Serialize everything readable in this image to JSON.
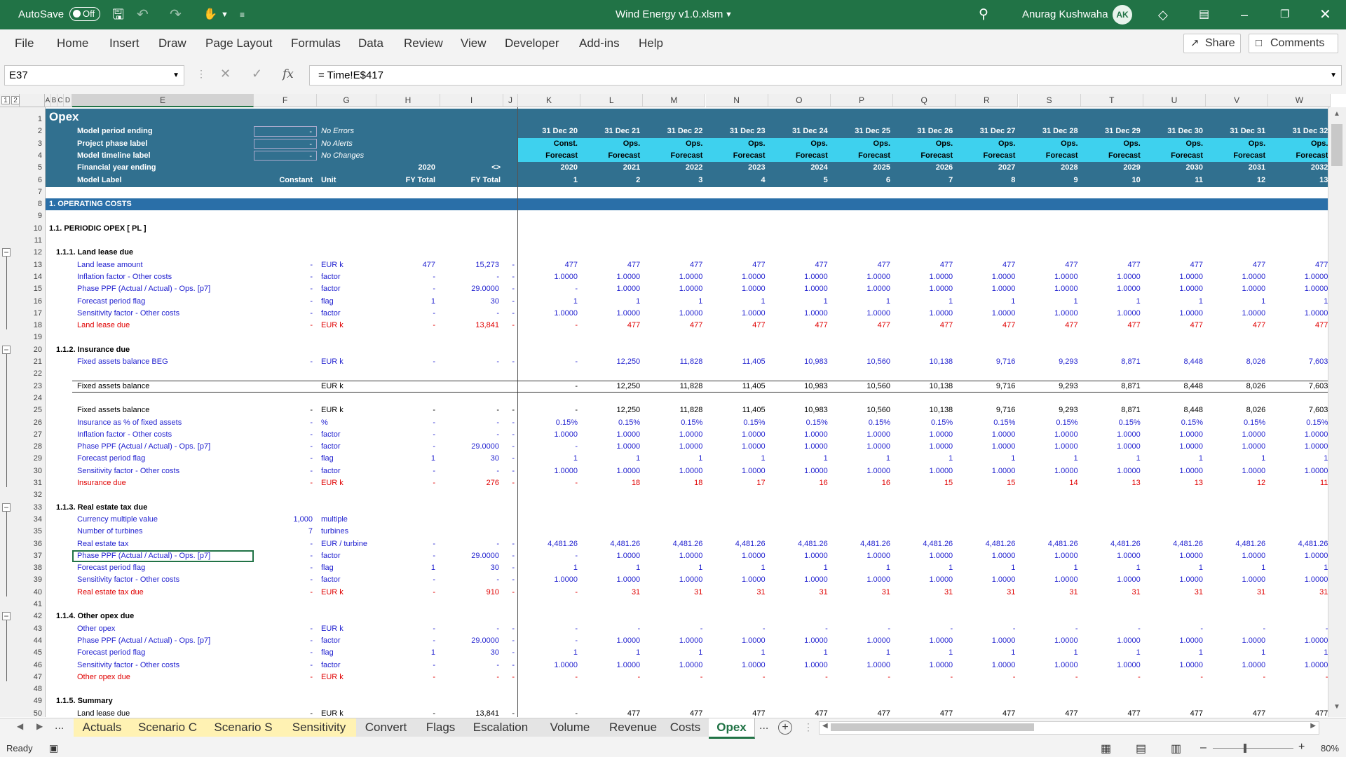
{
  "app": {
    "autosave_label": "AutoSave",
    "autosave_state": "Off",
    "title": "Wind Energy v1.0.xlsm",
    "user": "Anurag Kushwaha",
    "initials": "AK"
  },
  "ribbon": {
    "tabs": [
      "File",
      "Home",
      "Insert",
      "Draw",
      "Page Layout",
      "Formulas",
      "Data",
      "Review",
      "View",
      "Developer",
      "Add-ins",
      "Help"
    ],
    "share": "Share",
    "comments": "Comments"
  },
  "formula": {
    "namebox": "E37",
    "content": "= Time!E$417"
  },
  "colors": {
    "excel_green": "#217346",
    "band_blue": "#31708f",
    "cyan": "#3ed1ee",
    "section_blue": "#2a6fa8",
    "input_blue": "#1f1fcf",
    "calc_red": "#e00000"
  },
  "columns": {
    "outline_levels": [
      "1",
      "2"
    ],
    "headers": [
      "A",
      "B",
      "C",
      "D",
      "E",
      "F",
      "G",
      "H",
      "I",
      "J",
      "K",
      "L",
      "M",
      "N",
      "O",
      "P",
      "Q",
      "R",
      "S",
      "T",
      "U",
      "V",
      "W"
    ],
    "years": [
      {
        "date": "31 Dec 20",
        "phase": "Const.",
        "type": "Forecast",
        "year": "2020",
        "idx": "1"
      },
      {
        "date": "31 Dec 21",
        "phase": "Ops.",
        "type": "Forecast",
        "year": "2021",
        "idx": "2"
      },
      {
        "date": "31 Dec 22",
        "phase": "Ops.",
        "type": "Forecast",
        "year": "2022",
        "idx": "3"
      },
      {
        "date": "31 Dec 23",
        "phase": "Ops.",
        "type": "Forecast",
        "year": "2023",
        "idx": "4"
      },
      {
        "date": "31 Dec 24",
        "phase": "Ops.",
        "type": "Forecast",
        "year": "2024",
        "idx": "5"
      },
      {
        "date": "31 Dec 25",
        "phase": "Ops.",
        "type": "Forecast",
        "year": "2025",
        "idx": "6"
      },
      {
        "date": "31 Dec 26",
        "phase": "Ops.",
        "type": "Forecast",
        "year": "2026",
        "idx": "7"
      },
      {
        "date": "31 Dec 27",
        "phase": "Ops.",
        "type": "Forecast",
        "year": "2027",
        "idx": "8"
      },
      {
        "date": "31 Dec 28",
        "phase": "Ops.",
        "type": "Forecast",
        "year": "2028",
        "idx": "9"
      },
      {
        "date": "31 Dec 29",
        "phase": "Ops.",
        "type": "Forecast",
        "year": "2029",
        "idx": "10"
      },
      {
        "date": "31 Dec 30",
        "phase": "Ops.",
        "type": "Forecast",
        "year": "2030",
        "idx": "11"
      },
      {
        "date": "31 Dec 31",
        "phase": "Ops.",
        "type": "Forecast",
        "year": "2031",
        "idx": "12"
      },
      {
        "date": "31 Dec 32",
        "phase": "Ops.",
        "type": "Forecast",
        "year": "2032",
        "idx": "13"
      }
    ]
  },
  "header": {
    "title": "Opex",
    "rows": [
      {
        "label": "Model period ending",
        "input": "-",
        "status": "No Errors"
      },
      {
        "label": "Project phase label",
        "input": "-",
        "status": "No Alerts"
      },
      {
        "label": "Model timeline label",
        "input": "-",
        "status": "No Changes"
      }
    ],
    "fy_label": "Financial year ending",
    "fy_h": "2020",
    "fy_i": "<>",
    "model_label": "Model Label",
    "constant": "Constant",
    "unit": "Unit",
    "fy_total_h": "FY Total",
    "fy_total_i": "FY Total"
  },
  "rows": [
    {
      "n": "7",
      "kind": "blank"
    },
    {
      "n": "8",
      "kind": "section",
      "label": "1. OPERATING COSTS"
    },
    {
      "n": "9",
      "kind": "blank"
    },
    {
      "n": "10",
      "kind": "sub",
      "label": "1.1. PERIODIC OPEX [ PL ]"
    },
    {
      "n": "11",
      "kind": "blank"
    },
    {
      "n": "12",
      "kind": "group",
      "label": "1.1.1. Land lease due"
    },
    {
      "n": "13",
      "kind": "data",
      "c": "blue",
      "label": "Land lease amount",
      "f": "-",
      "g": "EUR k",
      "h": "477",
      "i": "15,273",
      "j": "-",
      "vals": [
        "477",
        "477",
        "477",
        "477",
        "477",
        "477",
        "477",
        "477",
        "477",
        "477",
        "477",
        "477",
        "477"
      ]
    },
    {
      "n": "14",
      "kind": "data",
      "c": "blue",
      "label": "Inflation factor - Other costs",
      "f": "-",
      "g": "factor",
      "h": "-",
      "i": "-",
      "j": "-",
      "vals": [
        "1.0000",
        "1.0000",
        "1.0000",
        "1.0000",
        "1.0000",
        "1.0000",
        "1.0000",
        "1.0000",
        "1.0000",
        "1.0000",
        "1.0000",
        "1.0000",
        "1.0000"
      ]
    },
    {
      "n": "15",
      "kind": "data",
      "c": "blue",
      "label": "Phase PPF (Actual / Actual) - Ops. [p7]",
      "f": "-",
      "g": "factor",
      "h": "-",
      "i": "29.0000",
      "j": "-",
      "vals": [
        "-",
        "1.0000",
        "1.0000",
        "1.0000",
        "1.0000",
        "1.0000",
        "1.0000",
        "1.0000",
        "1.0000",
        "1.0000",
        "1.0000",
        "1.0000",
        "1.0000"
      ]
    },
    {
      "n": "16",
      "kind": "data",
      "c": "blue",
      "label": "Forecast period flag",
      "f": "-",
      "g": "flag",
      "h": "1",
      "i": "30",
      "j": "-",
      "vals": [
        "1",
        "1",
        "1",
        "1",
        "1",
        "1",
        "1",
        "1",
        "1",
        "1",
        "1",
        "1",
        "1"
      ]
    },
    {
      "n": "17",
      "kind": "data",
      "c": "blue",
      "label": "Sensitivity factor - Other costs",
      "f": "-",
      "g": "factor",
      "h": "-",
      "i": "-",
      "j": "-",
      "vals": [
        "1.0000",
        "1.0000",
        "1.0000",
        "1.0000",
        "1.0000",
        "1.0000",
        "1.0000",
        "1.0000",
        "1.0000",
        "1.0000",
        "1.0000",
        "1.0000",
        "1.0000"
      ]
    },
    {
      "n": "18",
      "kind": "data",
      "c": "red",
      "label": "Land lease due",
      "f": "-",
      "g": "EUR k",
      "h": "-",
      "i": "13,841",
      "j": "-",
      "vals": [
        "-",
        "477",
        "477",
        "477",
        "477",
        "477",
        "477",
        "477",
        "477",
        "477",
        "477",
        "477",
        "477"
      ]
    },
    {
      "n": "19",
      "kind": "blank"
    },
    {
      "n": "20",
      "kind": "group",
      "label": "1.1.2. Insurance due"
    },
    {
      "n": "21",
      "kind": "data",
      "c": "blue",
      "label": "Fixed assets balance BEG",
      "f": "-",
      "g": "EUR k",
      "h": "-",
      "i": "-",
      "j": "-",
      "vals": [
        "-",
        "12,250",
        "11,828",
        "11,405",
        "10,983",
        "10,560",
        "10,138",
        "9,716",
        "9,293",
        "8,871",
        "8,448",
        "8,026",
        "7,603"
      ]
    },
    {
      "n": "22",
      "kind": "blank"
    },
    {
      "n": "23",
      "kind": "data",
      "c": "black",
      "label": "Fixed assets balance",
      "f": "",
      "g": "EUR k",
      "h": "",
      "i": "",
      "j": "",
      "vals": [
        "-",
        "12,250",
        "11,828",
        "11,405",
        "10,983",
        "10,560",
        "10,138",
        "9,716",
        "9,293",
        "8,871",
        "8,448",
        "8,026",
        "7,603"
      ],
      "boxed": true
    },
    {
      "n": "24",
      "kind": "blank"
    },
    {
      "n": "25",
      "kind": "data",
      "c": "black",
      "label": "Fixed assets balance",
      "f": "-",
      "g": "EUR k",
      "h": "-",
      "i": "-",
      "j": "-",
      "vals": [
        "-",
        "12,250",
        "11,828",
        "11,405",
        "10,983",
        "10,560",
        "10,138",
        "9,716",
        "9,293",
        "8,871",
        "8,448",
        "8,026",
        "7,603"
      ]
    },
    {
      "n": "26",
      "kind": "data",
      "c": "blue",
      "label": "Insurance as % of fixed assets",
      "f": "-",
      "g": "%",
      "h": "-",
      "i": "-",
      "j": "-",
      "vals": [
        "0.15%",
        "0.15%",
        "0.15%",
        "0.15%",
        "0.15%",
        "0.15%",
        "0.15%",
        "0.15%",
        "0.15%",
        "0.15%",
        "0.15%",
        "0.15%",
        "0.15%"
      ]
    },
    {
      "n": "27",
      "kind": "data",
      "c": "blue",
      "label": "Inflation factor - Other costs",
      "f": "-",
      "g": "factor",
      "h": "-",
      "i": "-",
      "j": "-",
      "vals": [
        "1.0000",
        "1.0000",
        "1.0000",
        "1.0000",
        "1.0000",
        "1.0000",
        "1.0000",
        "1.0000",
        "1.0000",
        "1.0000",
        "1.0000",
        "1.0000",
        "1.0000"
      ]
    },
    {
      "n": "28",
      "kind": "data",
      "c": "blue",
      "label": "Phase PPF (Actual / Actual) - Ops. [p7]",
      "f": "-",
      "g": "factor",
      "h": "-",
      "i": "29.0000",
      "j": "-",
      "vals": [
        "-",
        "1.0000",
        "1.0000",
        "1.0000",
        "1.0000",
        "1.0000",
        "1.0000",
        "1.0000",
        "1.0000",
        "1.0000",
        "1.0000",
        "1.0000",
        "1.0000"
      ]
    },
    {
      "n": "29",
      "kind": "data",
      "c": "blue",
      "label": "Forecast period flag",
      "f": "-",
      "g": "flag",
      "h": "1",
      "i": "30",
      "j": "-",
      "vals": [
        "1",
        "1",
        "1",
        "1",
        "1",
        "1",
        "1",
        "1",
        "1",
        "1",
        "1",
        "1",
        "1"
      ]
    },
    {
      "n": "30",
      "kind": "data",
      "c": "blue",
      "label": "Sensitivity factor - Other costs",
      "f": "-",
      "g": "factor",
      "h": "-",
      "i": "-",
      "j": "-",
      "vals": [
        "1.0000",
        "1.0000",
        "1.0000",
        "1.0000",
        "1.0000",
        "1.0000",
        "1.0000",
        "1.0000",
        "1.0000",
        "1.0000",
        "1.0000",
        "1.0000",
        "1.0000"
      ]
    },
    {
      "n": "31",
      "kind": "data",
      "c": "red",
      "label": "Insurance due",
      "f": "-",
      "g": "EUR k",
      "h": "-",
      "i": "276",
      "j": "-",
      "vals": [
        "-",
        "18",
        "18",
        "17",
        "16",
        "16",
        "15",
        "15",
        "14",
        "13",
        "13",
        "12",
        "11"
      ]
    },
    {
      "n": "32",
      "kind": "blank"
    },
    {
      "n": "33",
      "kind": "group",
      "label": "1.1.3. Real estate tax due"
    },
    {
      "n": "34",
      "kind": "data",
      "c": "blue",
      "label": "Currency multiple value",
      "f": "1,000",
      "g": "multiple",
      "h": "",
      "i": "",
      "j": "",
      "vals": [
        "",
        "",
        "",
        "",
        "",
        "",
        "",
        "",
        "",
        "",
        "",
        "",
        ""
      ]
    },
    {
      "n": "35",
      "kind": "data",
      "c": "blue",
      "label": "Number of turbines",
      "f": "7",
      "g": "turbines",
      "h": "",
      "i": "",
      "j": "",
      "vals": [
        "",
        "",
        "",
        "",
        "",
        "",
        "",
        "",
        "",
        "",
        "",
        "",
        ""
      ]
    },
    {
      "n": "36",
      "kind": "data",
      "c": "blue",
      "label": "Real estate tax",
      "f": "-",
      "g": "EUR / turbine",
      "h": "-",
      "i": "-",
      "j": "-",
      "vals": [
        "4,481.26",
        "4,481.26",
        "4,481.26",
        "4,481.26",
        "4,481.26",
        "4,481.26",
        "4,481.26",
        "4,481.26",
        "4,481.26",
        "4,481.26",
        "4,481.26",
        "4,481.26",
        "4,481.26"
      ]
    },
    {
      "n": "37",
      "kind": "data",
      "c": "blue",
      "label": "Phase PPF (Actual / Actual) - Ops. [p7]",
      "f": "-",
      "g": "factor",
      "h": "-",
      "i": "29.0000",
      "j": "-",
      "vals": [
        "-",
        "1.0000",
        "1.0000",
        "1.0000",
        "1.0000",
        "1.0000",
        "1.0000",
        "1.0000",
        "1.0000",
        "1.0000",
        "1.0000",
        "1.0000",
        "1.0000"
      ],
      "selected": true
    },
    {
      "n": "38",
      "kind": "data",
      "c": "blue",
      "label": "Forecast period flag",
      "f": "-",
      "g": "flag",
      "h": "1",
      "i": "30",
      "j": "-",
      "vals": [
        "1",
        "1",
        "1",
        "1",
        "1",
        "1",
        "1",
        "1",
        "1",
        "1",
        "1",
        "1",
        "1"
      ]
    },
    {
      "n": "39",
      "kind": "data",
      "c": "blue",
      "label": "Sensitivity factor - Other costs",
      "f": "-",
      "g": "factor",
      "h": "-",
      "i": "-",
      "j": "-",
      "vals": [
        "1.0000",
        "1.0000",
        "1.0000",
        "1.0000",
        "1.0000",
        "1.0000",
        "1.0000",
        "1.0000",
        "1.0000",
        "1.0000",
        "1.0000",
        "1.0000",
        "1.0000"
      ]
    },
    {
      "n": "40",
      "kind": "data",
      "c": "red",
      "label": "Real estate tax due",
      "f": "-",
      "g": "EUR k",
      "h": "-",
      "i": "910",
      "j": "-",
      "vals": [
        "-",
        "31",
        "31",
        "31",
        "31",
        "31",
        "31",
        "31",
        "31",
        "31",
        "31",
        "31",
        "31"
      ]
    },
    {
      "n": "41",
      "kind": "blank"
    },
    {
      "n": "42",
      "kind": "group",
      "label": "1.1.4. Other opex due"
    },
    {
      "n": "43",
      "kind": "data",
      "c": "blue",
      "label": "Other opex",
      "f": "-",
      "g": "EUR k",
      "h": "-",
      "i": "-",
      "j": "-",
      "vals": [
        "-",
        "-",
        "-",
        "-",
        "-",
        "-",
        "-",
        "-",
        "-",
        "-",
        "-",
        "-",
        "-"
      ]
    },
    {
      "n": "44",
      "kind": "data",
      "c": "blue",
      "label": "Phase PPF (Actual / Actual) - Ops. [p7]",
      "f": "-",
      "g": "factor",
      "h": "-",
      "i": "29.0000",
      "j": "-",
      "vals": [
        "-",
        "1.0000",
        "1.0000",
        "1.0000",
        "1.0000",
        "1.0000",
        "1.0000",
        "1.0000",
        "1.0000",
        "1.0000",
        "1.0000",
        "1.0000",
        "1.0000"
      ]
    },
    {
      "n": "45",
      "kind": "data",
      "c": "blue",
      "label": "Forecast period flag",
      "f": "-",
      "g": "flag",
      "h": "1",
      "i": "30",
      "j": "-",
      "vals": [
        "1",
        "1",
        "1",
        "1",
        "1",
        "1",
        "1",
        "1",
        "1",
        "1",
        "1",
        "1",
        "1"
      ]
    },
    {
      "n": "46",
      "kind": "data",
      "c": "blue",
      "label": "Sensitivity factor - Other costs",
      "f": "-",
      "g": "factor",
      "h": "-",
      "i": "-",
      "j": "-",
      "vals": [
        "1.0000",
        "1.0000",
        "1.0000",
        "1.0000",
        "1.0000",
        "1.0000",
        "1.0000",
        "1.0000",
        "1.0000",
        "1.0000",
        "1.0000",
        "1.0000",
        "1.0000"
      ]
    },
    {
      "n": "47",
      "kind": "data",
      "c": "red",
      "label": "Other opex due",
      "f": "-",
      "g": "EUR k",
      "h": "-",
      "i": "-",
      "j": "-",
      "vals": [
        "-",
        "-",
        "-",
        "-",
        "-",
        "-",
        "-",
        "-",
        "-",
        "-",
        "-",
        "-",
        "-"
      ]
    },
    {
      "n": "48",
      "kind": "blank"
    },
    {
      "n": "49",
      "kind": "group",
      "label": "1.1.5. Summary"
    },
    {
      "n": "50",
      "kind": "data",
      "c": "black",
      "label": "Land lease due",
      "f": "-",
      "g": "EUR k",
      "h": "-",
      "i": "13,841",
      "j": "-",
      "vals": [
        "-",
        "477",
        "477",
        "477",
        "477",
        "477",
        "477",
        "477",
        "477",
        "477",
        "477",
        "477",
        "477"
      ]
    }
  ],
  "sheets": {
    "ellipsis": "...",
    "tabs": [
      "Actuals",
      "Scenario C",
      "Scenario S",
      "Sensitivity",
      "Convert",
      "Flags",
      "Escalation",
      "Volume",
      "Revenue",
      "Costs",
      "Opex"
    ],
    "active": "Opex"
  },
  "statusbar": {
    "ready": "Ready",
    "zoom": "80%"
  }
}
